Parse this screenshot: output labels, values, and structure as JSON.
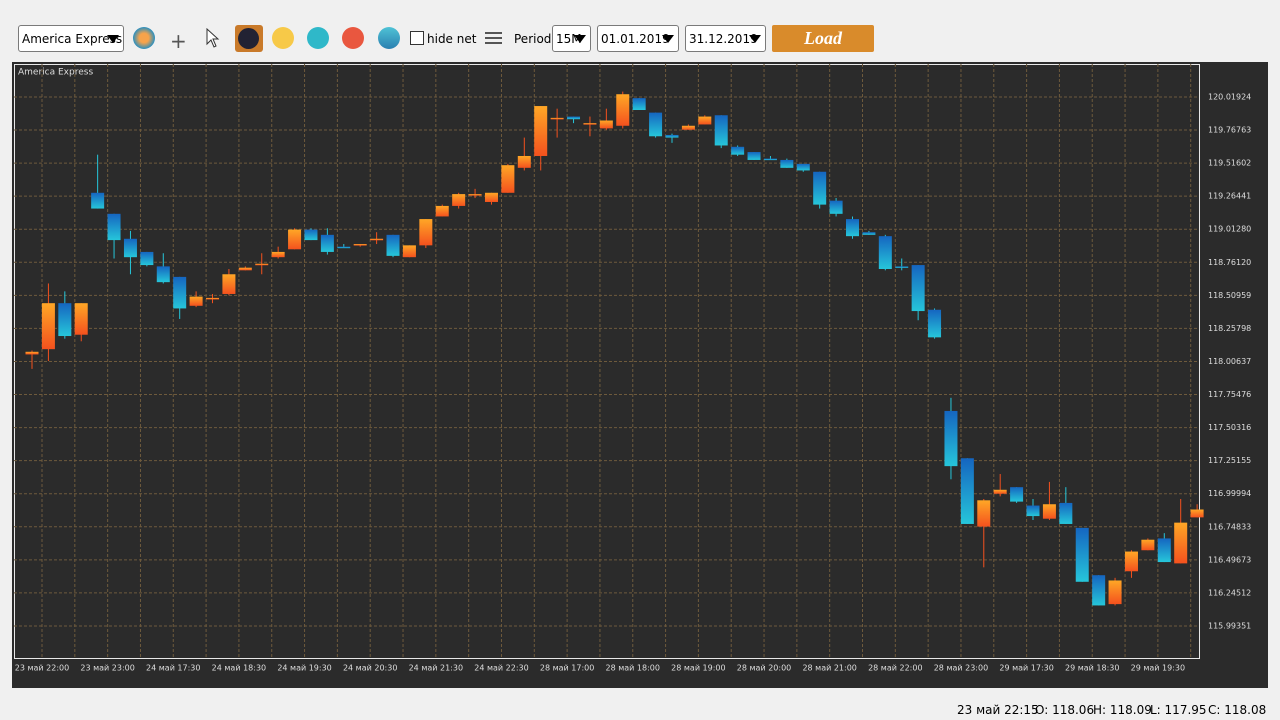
{
  "toolbar": {
    "symbol": "America Express",
    "hide_net": "hide net",
    "period_label": "Period",
    "period": "15M",
    "date_from": "01.01.2019",
    "date_to": "31.12.2019",
    "load": "Load"
  },
  "chart_data": {
    "type": "candlestick",
    "title": "America Express",
    "categories": [
      "23 май 22:00",
      null,
      null,
      null,
      "23 май 23:00",
      null,
      null,
      null,
      "24 май 17:30",
      null,
      null,
      null,
      "24 май 18:30",
      null,
      null,
      null,
      "24 май 19:30",
      null,
      null,
      null,
      "24 май 20:30",
      null,
      null,
      null,
      "24 май 21:30",
      null,
      null,
      null,
      "24 май 22:30",
      null,
      null,
      null,
      "28 май 17:00",
      null,
      null,
      null,
      "28 май 18:00",
      null,
      null,
      null,
      "28 май 19:00",
      null,
      null,
      null,
      "28 май 20:00",
      null,
      null,
      null,
      "28 май 21:00",
      null,
      null,
      null,
      "28 май 22:00",
      null,
      null,
      null,
      "28 май 23:00",
      null,
      null,
      null,
      "29 май 17:30",
      null,
      null,
      null,
      "29 май 18:30",
      null,
      null,
      null,
      "29 май 19:30",
      null,
      null,
      null
    ],
    "open": [
      118.06,
      118.1,
      118.45,
      118.21,
      119.29,
      119.13,
      118.94,
      118.84,
      118.73,
      118.65,
      118.43,
      118.48,
      118.52,
      118.7,
      118.75,
      118.8,
      118.86,
      119.01,
      118.97,
      118.88,
      118.89,
      118.94,
      118.97,
      118.8,
      118.89,
      119.11,
      119.19,
      119.28,
      119.22,
      119.29,
      119.48,
      119.57,
      119.86,
      119.87,
      119.82,
      119.78,
      119.8,
      120.01,
      119.9,
      119.73,
      119.77,
      119.81,
      119.88,
      119.64,
      119.6,
      119.55,
      119.54,
      119.51,
      119.45,
      119.23,
      119.09,
      118.99,
      118.96,
      118.73,
      118.74,
      118.4,
      117.63,
      117.27,
      116.75,
      117.0,
      117.05,
      116.91,
      116.81,
      116.93,
      116.74,
      116.38,
      116.16,
      116.41,
      116.57,
      116.66,
      116.47,
      116.82
    ],
    "high": [
      118.09,
      118.6,
      118.54,
      118.45,
      119.58,
      119.13,
      119.0,
      118.84,
      118.83,
      118.65,
      118.54,
      118.52,
      118.71,
      118.73,
      118.83,
      118.88,
      119.02,
      119.02,
      119.02,
      118.9,
      118.9,
      118.99,
      118.97,
      118.89,
      119.09,
      119.2,
      119.29,
      119.32,
      119.29,
      119.51,
      119.71,
      119.95,
      119.93,
      119.87,
      119.87,
      119.93,
      120.06,
      120.01,
      119.9,
      119.74,
      119.81,
      119.88,
      119.88,
      119.65,
      119.6,
      119.57,
      119.55,
      119.51,
      119.45,
      119.25,
      119.11,
      119.0,
      118.97,
      118.79,
      118.74,
      118.41,
      117.73,
      117.27,
      116.96,
      117.15,
      117.05,
      116.96,
      117.09,
      117.05,
      116.74,
      116.38,
      116.36,
      116.57,
      116.66,
      116.7,
      116.96,
      116.92
    ],
    "low": [
      117.95,
      118.01,
      118.18,
      118.16,
      119.17,
      118.79,
      118.67,
      118.73,
      118.6,
      118.33,
      118.42,
      118.45,
      118.51,
      118.7,
      118.67,
      118.79,
      118.86,
      118.93,
      118.82,
      118.87,
      118.88,
      118.9,
      118.8,
      118.8,
      118.87,
      119.11,
      119.17,
      119.25,
      119.2,
      119.29,
      119.46,
      119.46,
      119.71,
      119.82,
      119.72,
      119.77,
      119.78,
      119.92,
      119.71,
      119.67,
      119.77,
      119.81,
      119.63,
      119.57,
      119.54,
      119.54,
      119.48,
      119.45,
      119.17,
      119.11,
      118.94,
      118.97,
      118.7,
      118.7,
      118.32,
      118.18,
      117.11,
      116.77,
      116.44,
      116.98,
      116.93,
      116.8,
      116.8,
      116.77,
      116.33,
      116.15,
      116.15,
      116.36,
      116.57,
      116.48,
      116.47,
      116.82
    ],
    "close": [
      118.08,
      118.45,
      118.2,
      118.45,
      119.17,
      118.93,
      118.8,
      118.74,
      118.61,
      118.41,
      118.5,
      118.49,
      118.67,
      118.72,
      118.75,
      118.84,
      119.01,
      118.93,
      118.84,
      118.87,
      118.9,
      118.94,
      118.81,
      118.89,
      119.09,
      119.19,
      119.28,
      119.28,
      119.29,
      119.5,
      119.57,
      119.95,
      119.86,
      119.85,
      119.82,
      119.84,
      120.04,
      119.92,
      119.72,
      119.71,
      119.8,
      119.87,
      119.65,
      119.58,
      119.54,
      119.54,
      119.48,
      119.46,
      119.2,
      119.13,
      118.96,
      118.97,
      118.71,
      118.72,
      118.39,
      118.19,
      117.21,
      116.77,
      116.95,
      117.03,
      116.94,
      116.83,
      116.92,
      116.77,
      116.33,
      116.15,
      116.34,
      116.56,
      116.65,
      116.48,
      116.78,
      116.88
    ],
    "up_colors": [
      "#ffa726",
      "#f4511e"
    ],
    "down_colors": [
      "#1565c0",
      "#26c6da"
    ],
    "ylim": [
      115.75,
      120.27
    ],
    "yticks": [
      120.01924,
      119.76763,
      119.51602,
      119.26441,
      {
        "value": 119.0128,
        "label": "119.01280"
      },
      {
        "value": 118.7612,
        "label": "118.76120"
      },
      118.50959,
      118.25798,
      118.00637,
      117.75476,
      117.50316,
      117.25155,
      116.99994,
      116.74833,
      116.49673,
      116.24512,
      115.99351
    ],
    "grid": true
  },
  "status": {
    "time": "23 май 22:15",
    "open": "O: 118.06",
    "high": "H: 118.09",
    "low": "L: 117.95",
    "close": "C: 118.08"
  }
}
